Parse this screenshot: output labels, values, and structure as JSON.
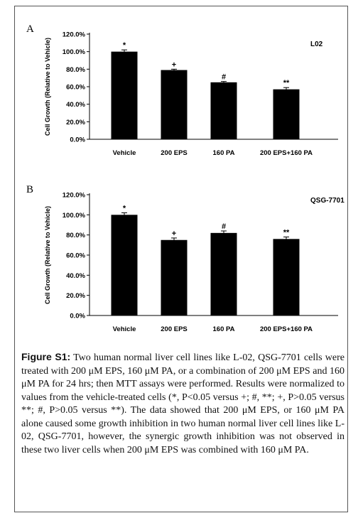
{
  "chart_data": [
    {
      "type": "bar",
      "panel_label": "A",
      "cell_line": "L02",
      "ylabel": "Cell Growth (Relative to Vehicle)",
      "ylim": [
        0,
        120
      ],
      "yticks": [
        "0.0%",
        "20.0%",
        "40.0%",
        "60.0%",
        "80.0%",
        "100.0%",
        "120.0%"
      ],
      "categories": [
        "Vehicle",
        "200 EPS",
        "160 PA",
        "200 EPS+160 PA"
      ],
      "values": [
        100,
        79,
        65,
        57
      ],
      "errors": [
        2,
        1,
        1,
        2
      ],
      "annotations": [
        "*",
        "+",
        "#",
        "**"
      ],
      "bar_color": "#000000",
      "grid": false
    },
    {
      "type": "bar",
      "panel_label": "B",
      "cell_line": "QSG-7701",
      "ylabel": "Cell Growth (Relative to Vehicle)",
      "ylim": [
        0,
        120
      ],
      "yticks": [
        "0.0%",
        "20.0%",
        "40.0%",
        "60.0%",
        "80.0%",
        "100.0%",
        "120.0%"
      ],
      "categories": [
        "Vehicle",
        "200 EPS",
        "160 PA",
        "200 EPS+160 PA"
      ],
      "values": [
        100,
        75,
        82,
        76
      ],
      "errors": [
        2,
        2,
        2,
        2
      ],
      "annotations": [
        "*",
        "+",
        "#",
        "**"
      ],
      "bar_color": "#000000",
      "grid": false
    }
  ],
  "caption": {
    "label": "Figure S1:",
    "text": " Two human normal liver cell lines like L-02, QSG-7701 cells were treated with 200 μM EPS, 160 μM PA, or a combination of 200 μM EPS and 160 μM PA for 24 hrs; then MTT assays were performed. Results were normalized to values from the vehicle-treated cells (*, P<0.05 versus +; #, **; +, P>0.05 versus **; #, P>0.05 versus **). The data showed that 200 μM EPS, or 160 μM PA alone caused some growth inhibition in two human normal liver cell lines like L-02, QSG-7701, however, the synergic growth inhibition was not observed in these two liver cells when 200 μM EPS was combined with 160 μM PA."
  }
}
